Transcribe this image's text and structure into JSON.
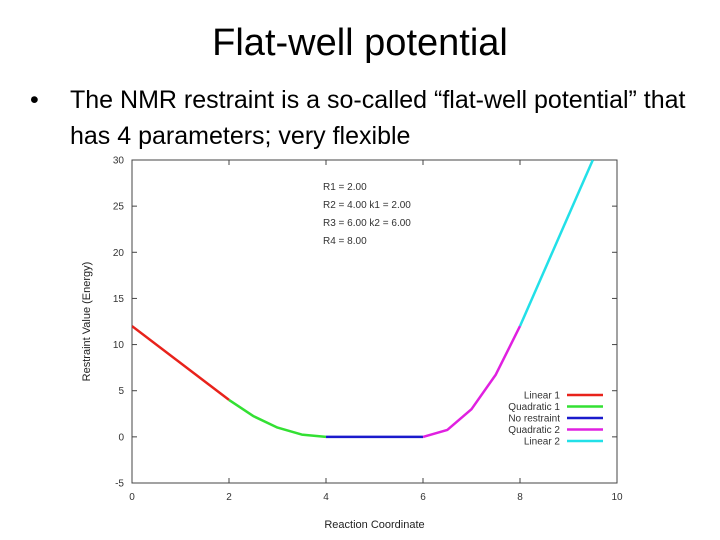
{
  "slide": {
    "title": "Flat-well potential",
    "bullet_symbol": "•",
    "bullet_text": "The NMR restraint is a so-called “flat-well potential” that has 4 parameters; very flexible"
  },
  "chart_data": {
    "type": "line",
    "title": "",
    "xlabel": "Reaction Coordinate",
    "ylabel": "Restraint Value (Energy)",
    "xlim": [
      0,
      10
    ],
    "ylim": [
      -5,
      30
    ],
    "xticks": [
      0,
      2,
      4,
      6,
      8,
      10
    ],
    "yticks": [
      -5,
      0,
      5,
      10,
      15,
      20,
      25,
      30
    ],
    "grid": false,
    "legend_position": "bottom-right",
    "annotations": [
      "R1 =   2.00",
      "R2 =   4.00   k1 =   2.00",
      "R3 =   6.00   k2 =   6.00",
      "R4 =   8.00"
    ],
    "series": [
      {
        "name": "Linear 1",
        "color": "#e8221b",
        "x": [
          0,
          2
        ],
        "y": [
          12,
          4
        ]
      },
      {
        "name": "Quadratic 1",
        "color": "#33e033",
        "x": [
          2,
          2.5,
          3,
          3.5,
          4
        ],
        "y": [
          4,
          2.25,
          1,
          0.25,
          0
        ]
      },
      {
        "name": "No restraint",
        "color": "#1a1acc",
        "x": [
          4,
          6
        ],
        "y": [
          0,
          0
        ]
      },
      {
        "name": "Quadratic 2",
        "color": "#e020e0",
        "x": [
          6,
          6.5,
          7,
          7.5,
          8
        ],
        "y": [
          0,
          0.75,
          3,
          6.75,
          12
        ]
      },
      {
        "name": "Linear 2",
        "color": "#22e0e8",
        "x": [
          8,
          9.5
        ],
        "y": [
          12,
          30
        ]
      }
    ]
  }
}
